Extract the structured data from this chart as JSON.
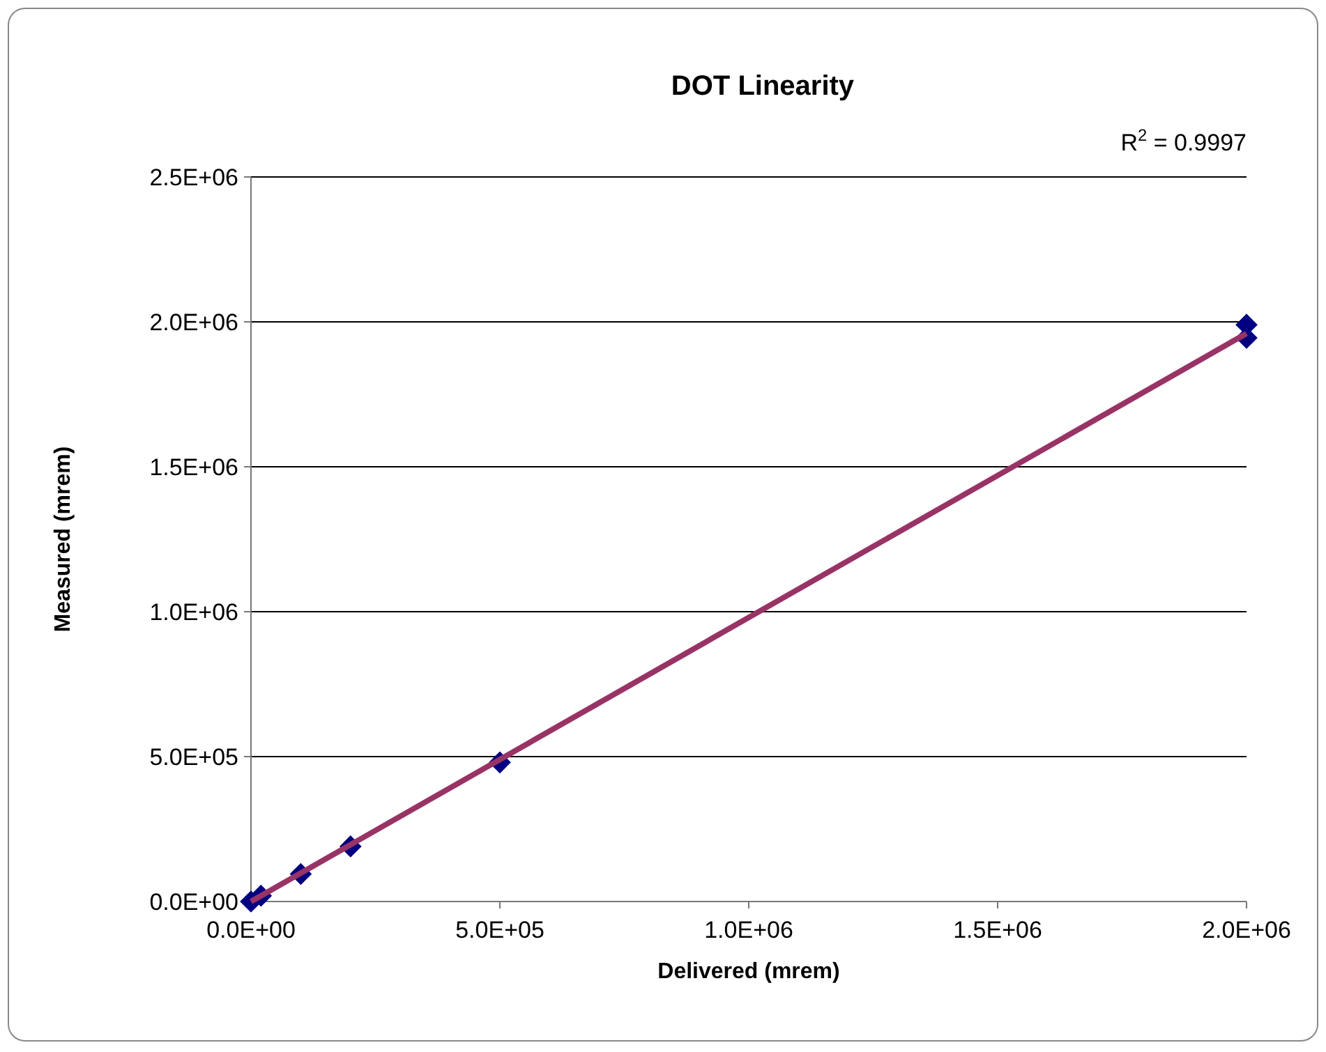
{
  "chart_data": {
    "type": "scatter",
    "title": "DOT Linearity",
    "xlabel": "Delivered (mrem)",
    "ylabel": "Measured (mrem)",
    "annotations": [
      "R$^{2}$ = 0.9997"
    ],
    "xlim": [
      0,
      2000000
    ],
    "xticks": [
      {
        "value": 0,
        "label": "0.0E+00"
      },
      {
        "value": 500000,
        "label": "5.0E+05"
      },
      {
        "value": 1000000,
        "label": "1.0E+06"
      },
      {
        "value": 1500000,
        "label": "1.5E+06"
      },
      {
        "value": 2000000,
        "label": "2.0E+06"
      }
    ],
    "ylim": [
      0,
      2500000
    ],
    "yticks": [
      {
        "value": 0,
        "label": "0.0E+00"
      },
      {
        "value": 500000,
        "label": "5.0E+05"
      },
      {
        "value": 1000000,
        "label": "1.0E+06"
      },
      {
        "value": 1500000,
        "label": "1.5E+06"
      },
      {
        "value": 2000000,
        "label": "2.0E+06"
      },
      {
        "value": 2500000,
        "label": "2.5E+06"
      }
    ],
    "grid": "y",
    "series": [
      {
        "marker": "diamond",
        "color": "#000080",
        "x": [
          0,
          20000,
          100000,
          200000,
          500000,
          2000000,
          2000000
        ],
        "values": [
          0,
          20000,
          95000,
          190000,
          480000,
          1990000,
          1945000
        ]
      },
      {
        "type": "line",
        "color": "#993366",
        "x": [
          0,
          2000000
        ],
        "values": [
          0,
          1960000
        ]
      }
    ]
  }
}
